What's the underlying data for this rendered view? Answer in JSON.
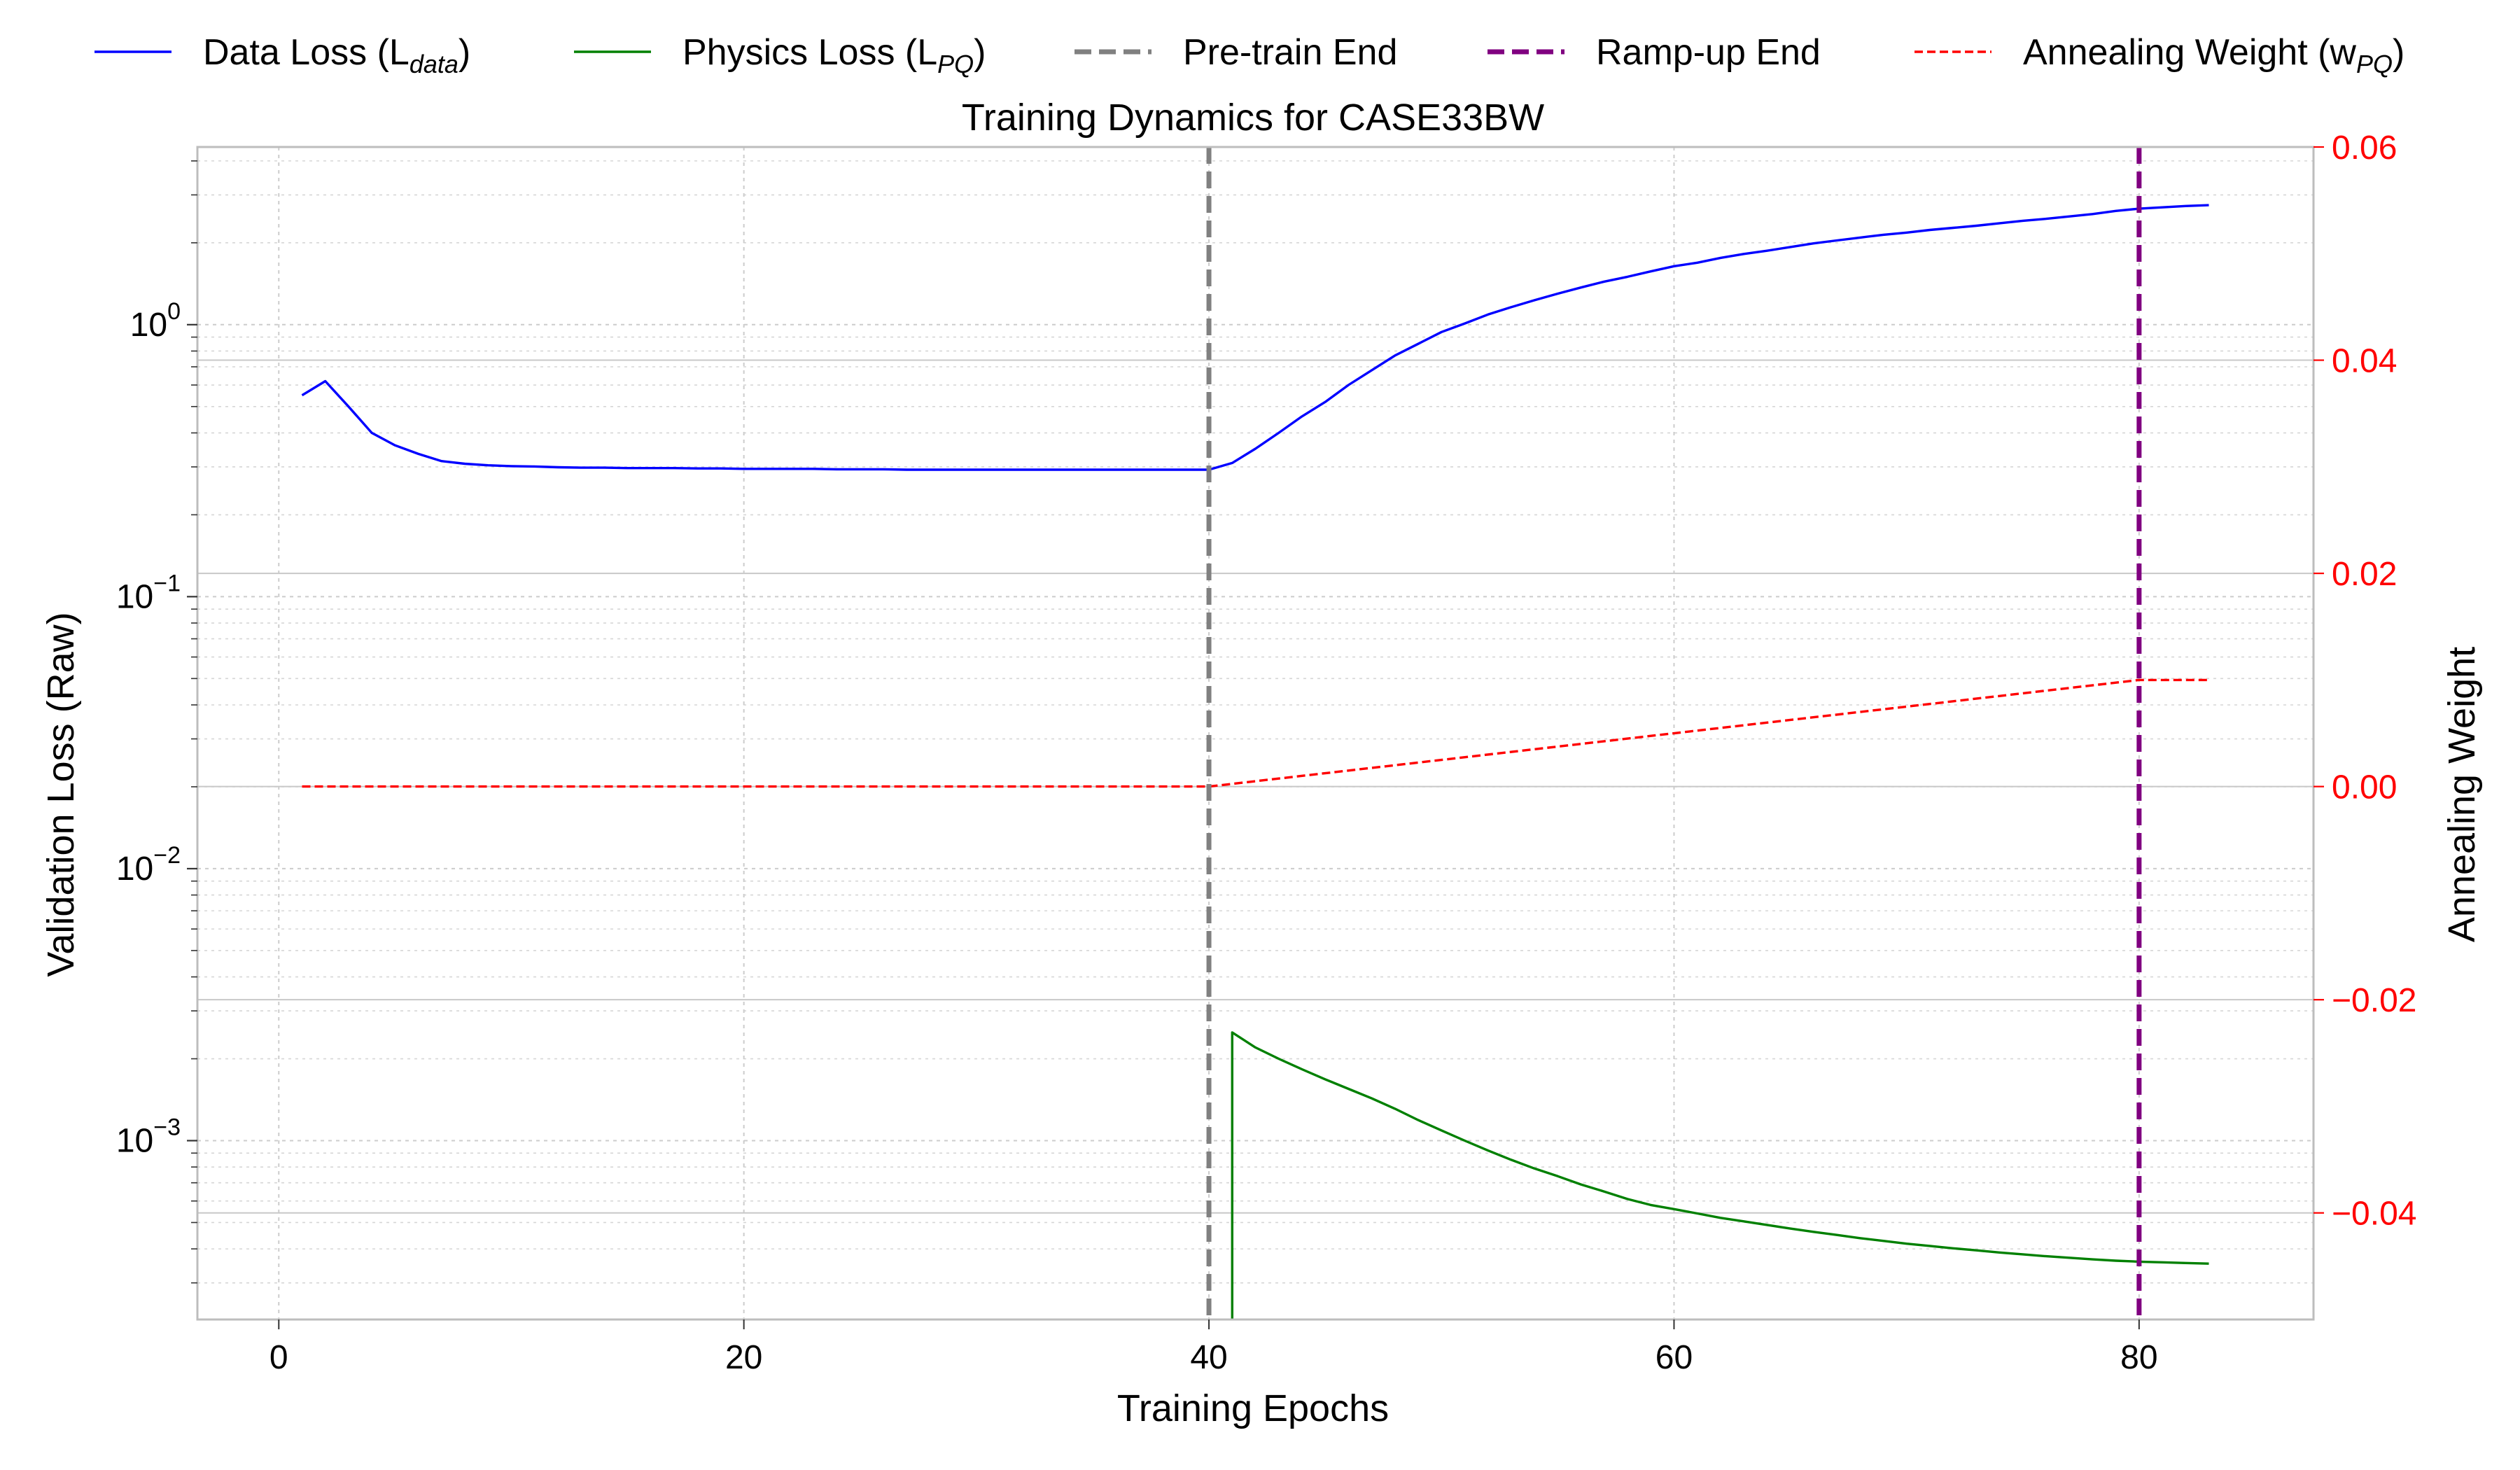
{
  "chart_data": {
    "type": "line",
    "title": "Training Dynamics for CASE33BW",
    "xlabel": "Training Epochs",
    "ylabel_left": "Validation Loss (Raw)",
    "ylabel_right": "Annealing Weight",
    "x_range": [
      -3.5,
      87.5
    ],
    "x_ticks": [
      {
        "value": 0,
        "label": "0"
      },
      {
        "value": 20,
        "label": "20"
      },
      {
        "value": 40,
        "label": "40"
      },
      {
        "value": 60,
        "label": "60"
      },
      {
        "value": 80,
        "label": "80"
      }
    ],
    "y_left_scale": "log",
    "y_left_range": [
      0.00022,
      4.5
    ],
    "y_left_ticks": [
      {
        "value": 1,
        "base": "10",
        "exp": "0"
      },
      {
        "value": 0.1,
        "base": "10",
        "exp": "−1"
      },
      {
        "value": 0.01,
        "base": "10",
        "exp": "−2"
      },
      {
        "value": 0.001,
        "base": "10",
        "exp": "−3"
      }
    ],
    "y_right_range": [
      -0.05,
      0.06
    ],
    "y_right_ticks": [
      {
        "value": 0.06,
        "label": "0.06"
      },
      {
        "value": 0.04,
        "label": "0.04"
      },
      {
        "value": 0.02,
        "label": "0.02"
      },
      {
        "value": 0.0,
        "label": "0.00"
      },
      {
        "value": -0.02,
        "label": "−0.02"
      },
      {
        "value": -0.04,
        "label": "−0.04"
      }
    ],
    "grid": true,
    "legend_position": "top",
    "legend": [
      {
        "name": "Data Loss (L",
        "sub": "data",
        "tail": ")",
        "color": "#0000ff",
        "style": "solid"
      },
      {
        "name": "Physics Loss (L",
        "sub": "PQ",
        "tail": ")",
        "color": "#008000",
        "style": "solid"
      },
      {
        "name": "Pre-train End",
        "sub": "",
        "tail": "",
        "color": "#808080",
        "style": "dashed-thick"
      },
      {
        "name": "Ramp-up End",
        "sub": "",
        "tail": "",
        "color": "#800080",
        "style": "dashed-thick"
      },
      {
        "name": "Annealing Weight (w",
        "sub": "PQ",
        "tail": ")",
        "color": "#ff0000",
        "style": "dashed"
      }
    ],
    "series": {
      "data_loss": {
        "color": "#0000ff",
        "x": [
          1,
          2,
          3,
          4,
          5,
          6,
          7,
          8,
          9,
          10,
          11,
          12,
          13,
          14,
          15,
          16,
          17,
          18,
          19,
          20,
          21,
          22,
          23,
          24,
          25,
          26,
          27,
          28,
          29,
          30,
          31,
          32,
          33,
          34,
          35,
          36,
          37,
          38,
          39,
          40,
          41,
          42,
          43,
          44,
          45,
          46,
          47,
          48,
          49,
          50,
          51,
          52,
          53,
          54,
          55,
          56,
          57,
          58,
          59,
          60,
          61,
          62,
          63,
          64,
          65,
          66,
          67,
          68,
          69,
          70,
          71,
          72,
          73,
          74,
          75,
          76,
          77,
          78,
          79,
          80,
          81,
          82,
          83
        ],
        "y": [
          0.55,
          0.62,
          0.5,
          0.4,
          0.36,
          0.335,
          0.315,
          0.308,
          0.304,
          0.302,
          0.301,
          0.299,
          0.298,
          0.298,
          0.297,
          0.297,
          0.297,
          0.296,
          0.296,
          0.295,
          0.295,
          0.295,
          0.295,
          0.294,
          0.294,
          0.294,
          0.293,
          0.293,
          0.293,
          0.293,
          0.293,
          0.293,
          0.293,
          0.293,
          0.293,
          0.293,
          0.293,
          0.293,
          0.293,
          0.293,
          0.31,
          0.35,
          0.4,
          0.46,
          0.52,
          0.6,
          0.68,
          0.77,
          0.85,
          0.94,
          1.01,
          1.09,
          1.16,
          1.23,
          1.3,
          1.37,
          1.44,
          1.5,
          1.57,
          1.64,
          1.69,
          1.76,
          1.82,
          1.87,
          1.93,
          1.99,
          2.04,
          2.09,
          2.14,
          2.18,
          2.23,
          2.27,
          2.31,
          2.36,
          2.41,
          2.45,
          2.5,
          2.55,
          2.62,
          2.67,
          2.7,
          2.73,
          2.75
        ]
      },
      "physics_loss": {
        "color": "#008000",
        "x": [
          41,
          41,
          42,
          43,
          44,
          45,
          46,
          47,
          48,
          49,
          50,
          51,
          52,
          53,
          54,
          55,
          56,
          57,
          58,
          59,
          60,
          61,
          62,
          63,
          64,
          65,
          66,
          67,
          68,
          69,
          70,
          71,
          72,
          73,
          74,
          75,
          76,
          77,
          78,
          79,
          80,
          81,
          82,
          83
        ],
        "y": [
          0.00022,
          0.0025,
          0.0022,
          0.002,
          0.00183,
          0.00168,
          0.00155,
          0.00143,
          0.00131,
          0.00119,
          0.00109,
          0.001,
          0.00092,
          0.00085,
          0.00079,
          0.00074,
          0.00069,
          0.00065,
          0.00061,
          0.00058,
          0.00056,
          0.00054,
          0.00052,
          0.000505,
          0.00049,
          0.000475,
          0.000462,
          0.00045,
          0.000438,
          0.000428,
          0.000418,
          0.00041,
          0.000402,
          0.000395,
          0.000388,
          0.000382,
          0.000376,
          0.000371,
          0.000366,
          0.000362,
          0.000359,
          0.000357,
          0.000355,
          0.000353
        ]
      },
      "annealing_weight": {
        "color": "#ff0000",
        "x": [
          1,
          40,
          80,
          83
        ],
        "y": [
          0.0,
          0.0,
          0.01,
          0.01
        ]
      }
    },
    "vlines": [
      {
        "name": "Pre-train End",
        "x": 40,
        "color": "#808080"
      },
      {
        "name": "Ramp-up End",
        "x": 80,
        "color": "#800080"
      }
    ]
  }
}
